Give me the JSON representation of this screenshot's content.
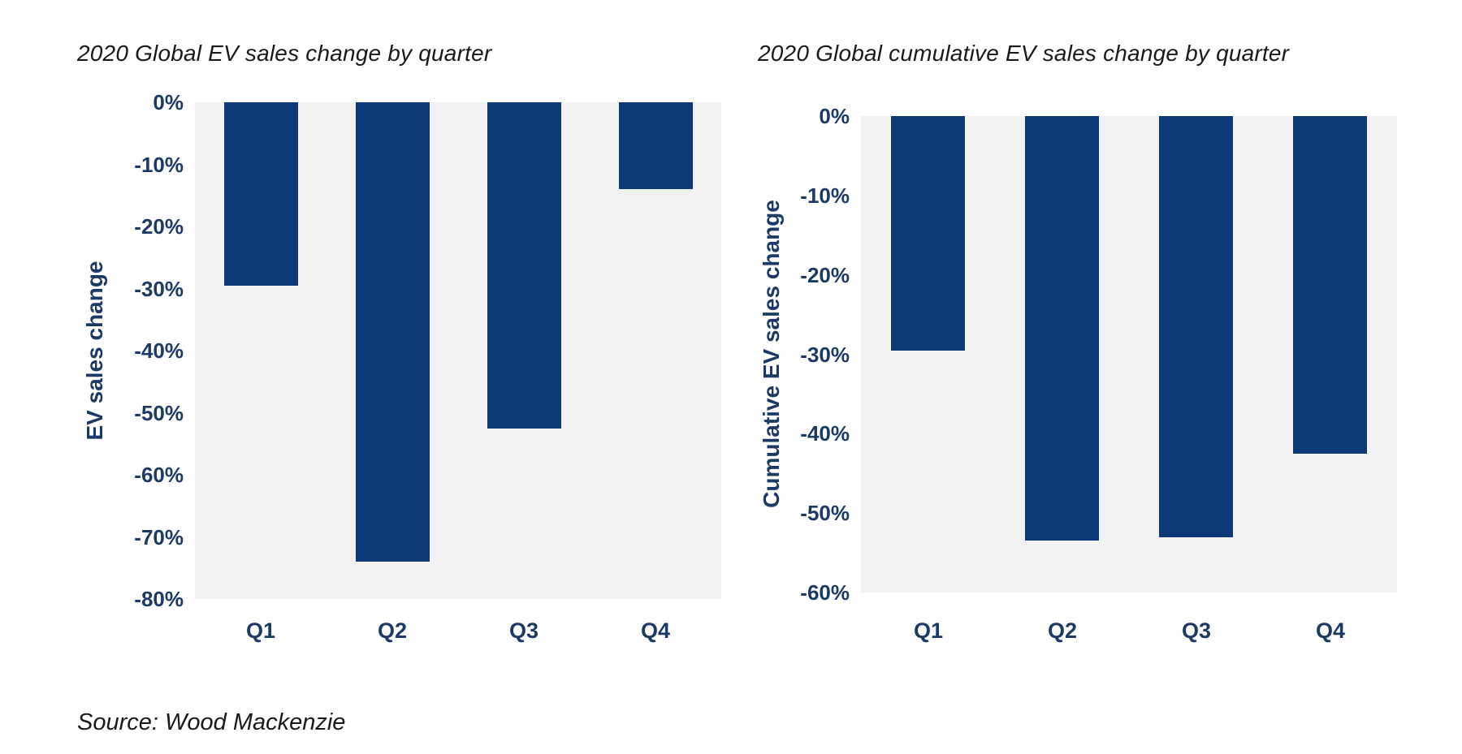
{
  "page": {
    "source_note": "Source: Wood Mackenzie"
  },
  "colors": {
    "bar": "#0d3a77",
    "axis_text": "#1b3b66",
    "title_text": "#1a1a1a",
    "plot_bg": "#f2f2f2",
    "page_bg": "#ffffff"
  },
  "chart_data": [
    {
      "type": "bar",
      "title": "2020 Global EV sales change by quarter",
      "categories": [
        "Q1",
        "Q2",
        "Q3",
        "Q4"
      ],
      "values": [
        -29.5,
        -74,
        -52.5,
        -14
      ],
      "unit": "%",
      "xlabel": "",
      "ylabel": "EV sales change",
      "ylim": [
        -80,
        0
      ],
      "ytick_step": 10,
      "ytick_labels": [
        "0%",
        "-10%",
        "-20%",
        "-30%",
        "-40%",
        "-50%",
        "-60%",
        "-70%",
        "-80%"
      ],
      "grid": false,
      "legend": "none"
    },
    {
      "type": "bar",
      "title": "2020 Global cumulative EV sales change by quarter",
      "categories": [
        "Q1",
        "Q2",
        "Q3",
        "Q4"
      ],
      "values": [
        -29.5,
        -53.5,
        -53,
        -42.5
      ],
      "unit": "%",
      "xlabel": "",
      "ylabel": "Cumulative EV sales change",
      "ylim": [
        -60,
        0
      ],
      "ytick_step": 10,
      "ytick_labels": [
        "0%",
        "-10%",
        "-20%",
        "-30%",
        "-40%",
        "-50%",
        "-60%"
      ],
      "grid": false,
      "legend": "none"
    }
  ]
}
